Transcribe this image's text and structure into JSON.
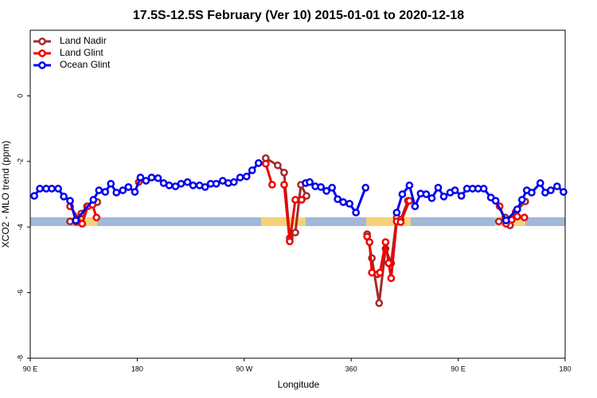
{
  "chart_data": {
    "type": "line",
    "title": "17.5S-12.5S February (Ver 10)   2015-01-01 to 2020-12-18",
    "x_label": "Longitude",
    "y_label": "XCO2 - MLO trend (ppm)",
    "xlim": [
      90,
      540
    ],
    "ylim": [
      -8,
      2
    ],
    "xticks": [
      {
        "value": 90,
        "label": "90 E"
      },
      180,
      {
        "value": 270,
        "label": "90 W"
      },
      360,
      {
        "value": 450,
        "label": "90 E"
      },
      {
        "value": 540,
        "label": "180"
      }
    ],
    "yticks": [
      0,
      -2,
      -4,
      -6,
      -8
    ],
    "legend": "top-left",
    "series": [
      {
        "name": "Land Nadir",
        "color": "#a52a2a",
        "x": [
          123.5,
          129.0,
          133.0,
          137.7,
          146.4,
          null,
          288.1,
          298.2,
          303.6,
          308.3,
          313.0,
          317.7,
          322.4,
          null,
          373.4,
          377.4,
          383.5,
          388.9,
          393.6,
          398.3,
          401.6,
          407.7,
          null,
          484.2,
          489.6,
          493.6,
          498.3,
          506.4
        ],
        "values": [
          -3.83,
          -3.85,
          -3.59,
          -3.37,
          -3.24,
          null,
          -1.9,
          -2.12,
          -2.34,
          -4.34,
          -4.17,
          -2.71,
          -3.05,
          null,
          -4.22,
          -4.95,
          -6.32,
          -4.66,
          -5.1,
          -3.71,
          -3.78,
          -3.2,
          null,
          -3.83,
          -3.71,
          -3.95,
          -3.54,
          -3.22
        ]
      },
      {
        "name": "Land Glint",
        "color": "#ee0000",
        "x": [
          123.5,
          133.7,
          138.4,
          142.4,
          145.7,
          null,
          181.3,
          null,
          288.1,
          293.5,
          null,
          303.6,
          308.3,
          313.0,
          318.3,
          null,
          373.4,
          375.4,
          377.4,
          382.1,
          384.2,
          388.9,
          391.5,
          393.6,
          398.3,
          401.6,
          409.0,
          null,
          484.9,
          490.3,
          495.0,
          499.7,
          505.7
        ],
        "values": [
          -3.37,
          -3.9,
          -3.37,
          -3.32,
          -3.71,
          null,
          -2.63,
          null,
          -2.07,
          -2.71,
          null,
          -2.71,
          -4.44,
          -3.17,
          -3.17,
          null,
          -4.29,
          -4.46,
          -5.39,
          -5.44,
          -5.39,
          -4.46,
          -5.1,
          -5.56,
          -3.83,
          -3.85,
          -3.2,
          null,
          -3.37,
          -3.9,
          -3.78,
          -3.68,
          -3.71
        ]
      },
      {
        "name": "Ocean Glint",
        "color": "#0000ee",
        "x": [
          93.4,
          98.1,
          103.4,
          108.1,
          113.5,
          118.2,
          123.5,
          128.3,
          143.1,
          147.8,
          153.1,
          157.8,
          162.5,
          167.9,
          172.6,
          178.0,
          182.7,
          187.4,
          192.1,
          197.5,
          202.2,
          206.9,
          212.2,
          216.9,
          222.3,
          227.0,
          232.4,
          237.1,
          241.8,
          246.5,
          251.9,
          256.6,
          261.3,
          266.6,
          272.0,
          276.7,
          282.1,
          null,
          321.7,
          325.1,
          329.8,
          334.5,
          339.2,
          343.9,
          348.6,
          353.3,
          358.6,
          364.0,
          372.1,
          null,
          398.3,
          403.0,
          409.0,
          413.7,
          418.4,
          423.1,
          427.8,
          433.2,
          437.9,
          443.3,
          447.3,
          452.7,
          457.4,
          462.1,
          466.8,
          471.5,
          477.5,
          481.5,
          490.3,
          499.7,
          503.7,
          507.7,
          511.8,
          519.1,
          523.2,
          527.9,
          533.2,
          538.6
        ],
        "values": [
          -3.05,
          -2.83,
          -2.83,
          -2.83,
          -2.83,
          -3.07,
          -3.2,
          -3.8,
          -3.17,
          -2.88,
          -2.93,
          -2.68,
          -2.95,
          -2.88,
          -2.78,
          -2.93,
          -2.49,
          -2.59,
          -2.49,
          -2.51,
          -2.66,
          -2.73,
          -2.76,
          -2.68,
          -2.63,
          -2.73,
          -2.73,
          -2.78,
          -2.68,
          -2.68,
          -2.59,
          -2.66,
          -2.63,
          -2.49,
          -2.46,
          -2.27,
          -2.05,
          null,
          -2.66,
          -2.63,
          -2.76,
          -2.78,
          -2.9,
          -2.8,
          -3.15,
          -3.24,
          -3.29,
          -3.56,
          -2.8,
          null,
          -3.56,
          -3.0,
          -2.73,
          -3.37,
          -2.98,
          -3.0,
          -3.12,
          -2.8,
          -3.07,
          -2.95,
          -2.88,
          -3.05,
          -2.83,
          -2.83,
          -2.83,
          -2.83,
          -3.1,
          -3.2,
          -3.8,
          -3.46,
          -3.17,
          -2.88,
          -2.95,
          -2.66,
          -2.95,
          -2.88,
          -2.76,
          -2.93
        ]
      }
    ]
  }
}
